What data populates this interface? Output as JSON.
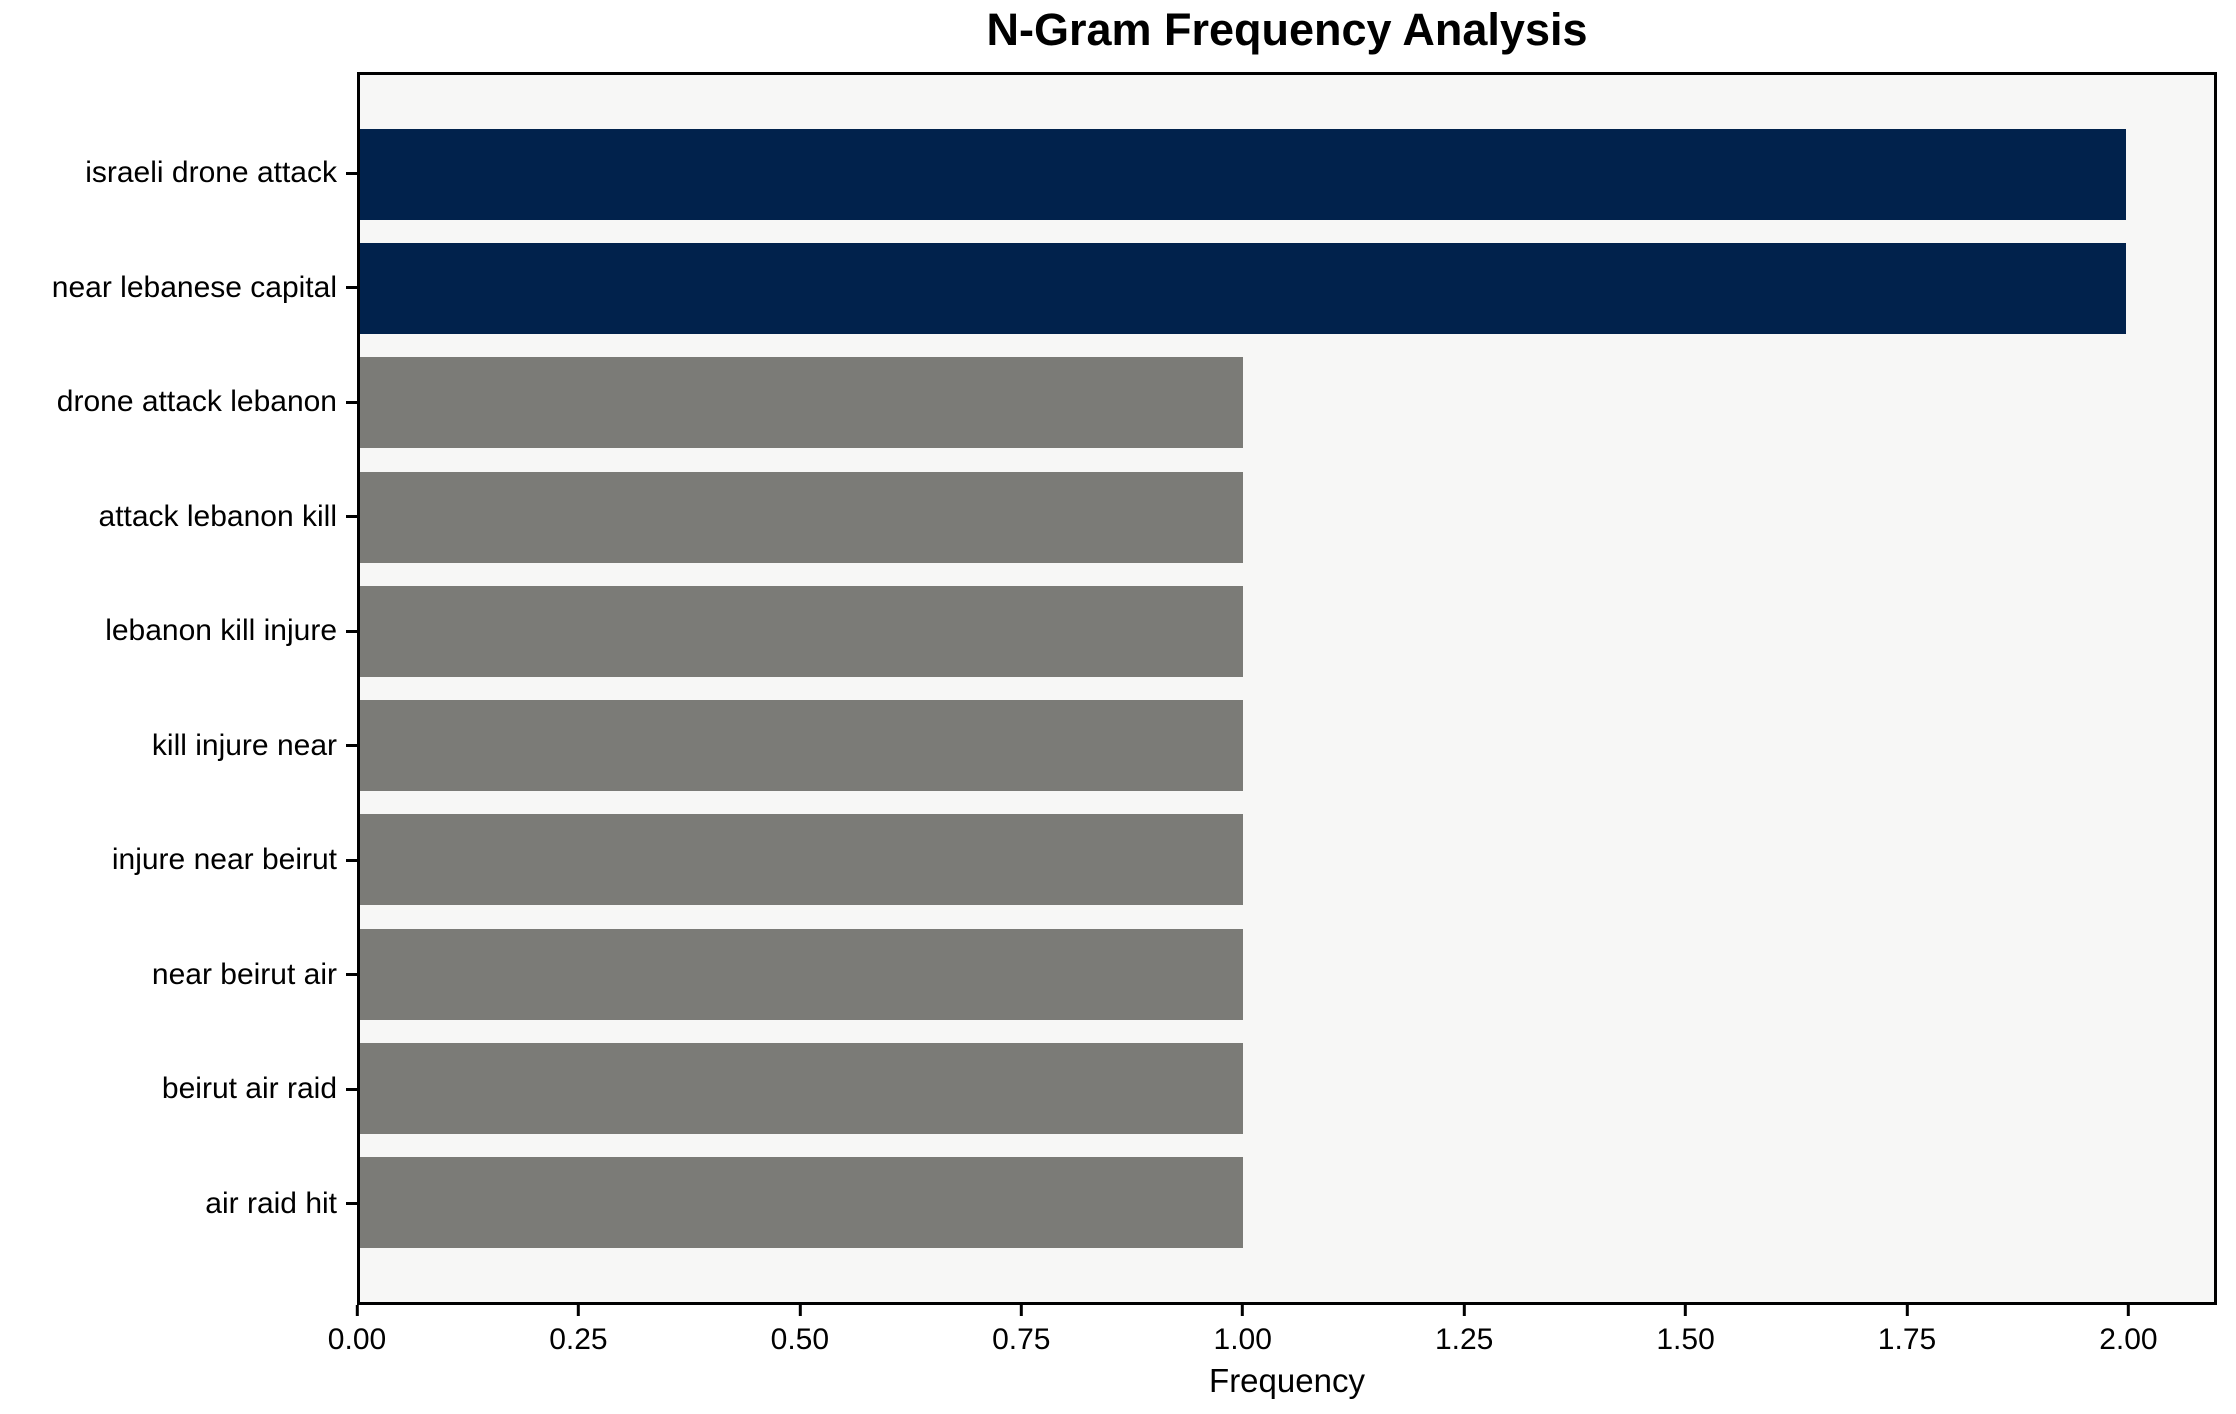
{
  "chart_data": {
    "type": "bar",
    "orientation": "horizontal",
    "title": "N-Gram Frequency Analysis",
    "xlabel": "Frequency",
    "ylabel": "",
    "categories": [
      "israeli drone attack",
      "near lebanese capital",
      "drone attack lebanon",
      "attack lebanon kill",
      "lebanon kill injure",
      "kill injure near",
      "injure near beirut",
      "near beirut air",
      "beirut air raid",
      "air raid hit"
    ],
    "values": [
      2,
      2,
      1,
      1,
      1,
      1,
      1,
      1,
      1,
      1
    ],
    "bar_colors": [
      "#01224c",
      "#01224c",
      "#7b7b77",
      "#7b7b77",
      "#7b7b77",
      "#7b7b77",
      "#7b7b77",
      "#7b7b77",
      "#7b7b77",
      "#7b7b77"
    ],
    "highlight_color": "#01224c",
    "base_color": "#7b7b77",
    "plot_background": "#f7f7f6",
    "xlim": [
      0,
      2.1
    ],
    "x_tick_values": [
      0.0,
      0.25,
      0.5,
      0.75,
      1.0,
      1.25,
      1.5,
      1.75,
      2.0
    ],
    "x_tick_labels": [
      "0.00",
      "0.25",
      "0.50",
      "0.75",
      "1.00",
      "1.25",
      "1.50",
      "1.75",
      "2.00"
    ],
    "grid": false,
    "legend": false
  }
}
